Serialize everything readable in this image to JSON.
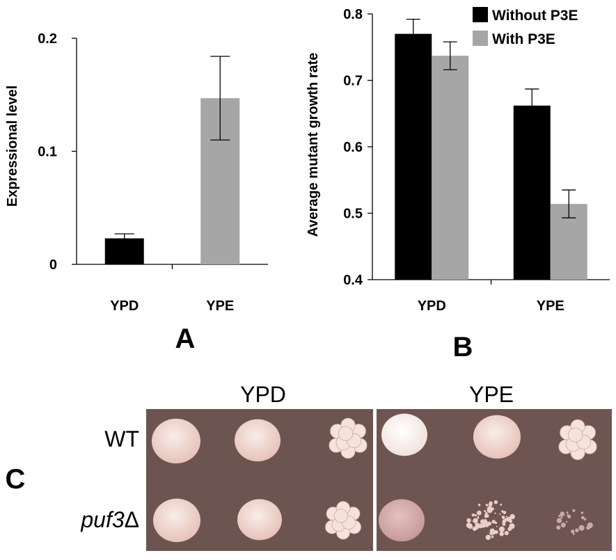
{
  "colors": {
    "black_bar": "#000000",
    "gray_bar": "#a6a6a6",
    "plate_bg": "#6e5550",
    "colony": "#efd3cc",
    "colony_light": "#f8ede9"
  },
  "chart_data": [
    {
      "type": "bar",
      "panel_label": "A",
      "categories": [
        "YPD",
        "YPE"
      ],
      "values": [
        0.023,
        0.147
      ],
      "errors": [
        0.004,
        0.037
      ],
      "bar_colors": [
        "#000000",
        "#a6a6a6"
      ],
      "ylabel": "Expressional level",
      "ylim": [
        0,
        0.2
      ],
      "yticks": [
        "0",
        "0.1",
        "0.2"
      ],
      "grid": false
    },
    {
      "type": "bar",
      "panel_label": "B",
      "categories": [
        "YPD",
        "YPE"
      ],
      "series": [
        {
          "name": "Without P3E",
          "values": [
            0.77,
            0.662
          ],
          "errors": [
            0.022,
            0.025
          ],
          "color": "#000000"
        },
        {
          "name": "With P3E",
          "values": [
            0.737,
            0.514
          ],
          "errors": [
            0.021,
            0.021
          ],
          "color": "#a6a6a6"
        }
      ],
      "ylabel": "Average mutant growth rate",
      "ylim": [
        0.4,
        0.8
      ],
      "yticks": [
        "0.4",
        "0.5",
        "0.6",
        "0.7",
        "0.8"
      ],
      "legend_position": "top-right",
      "grid": false
    }
  ],
  "panel_c": {
    "label": "C",
    "conditions": [
      "YPD",
      "YPE"
    ],
    "strains": [
      "WT",
      "puf3",
      "Δ"
    ]
  }
}
